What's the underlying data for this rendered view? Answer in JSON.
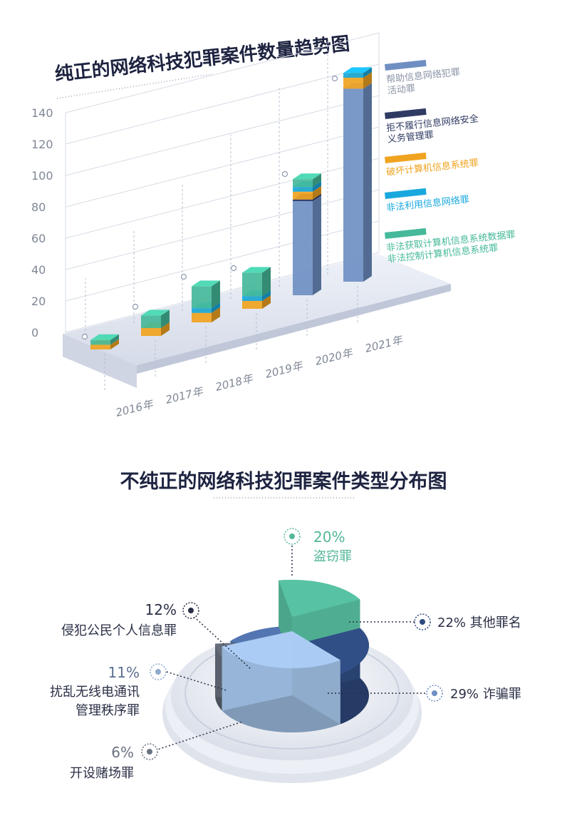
{
  "chart_data": [
    {
      "type": "bar",
      "title": "纯正的网络科技犯罪案件数量趋势图",
      "categories": [
        "2016年",
        "2017年",
        "2018年",
        "2019年",
        "2020年",
        "2021年"
      ],
      "yticks": [
        "0",
        "20",
        "40",
        "60",
        "80",
        "100",
        "120",
        "140"
      ],
      "ylim": [
        0,
        140
      ],
      "stacked": true,
      "series": [
        {
          "name": "帮助信息网络犯罪活动罪",
          "color": "#6f8fc3",
          "values": [
            0,
            0,
            0,
            0,
            60,
            123
          ]
        },
        {
          "name": "拒不履行信息网络安全义务管理罪",
          "color": "#2f3b63",
          "values": [
            0,
            0,
            0,
            0,
            1,
            0
          ]
        },
        {
          "name": "破坏计算机信息系统罪",
          "color": "#f0a320",
          "values": [
            3,
            5,
            6,
            5,
            5,
            7
          ]
        },
        {
          "name": "非法利用信息网络罪",
          "color": "#18a8de",
          "values": [
            0,
            0,
            3,
            3,
            3,
            3
          ]
        },
        {
          "name": "非法获取计算机信息系统数据罪 非法控制计算机信息系统罪",
          "color": "#45b99a",
          "values": [
            3,
            8,
            14,
            15,
            5,
            0
          ]
        }
      ],
      "legend": [
        {
          "line1": "帮助信息网络犯罪",
          "line2": "活动罪",
          "color": "#6f8fc3",
          "text_color": "#8a93a6"
        },
        {
          "line1": "拒不履行信息网络安全",
          "line2": "义务管理罪",
          "color": "#2f3b63",
          "text_color": "#2f3b63"
        },
        {
          "line1": "破坏计算机信息系统罪",
          "line2": "",
          "color": "#f0a320",
          "text_color": "#f0a320"
        },
        {
          "line1": "非法利用信息网络罪",
          "line2": "",
          "color": "#18a8de",
          "text_color": "#18a8de"
        },
        {
          "line1": "非法获取计算机信息系统数据罪",
          "line2": "非法控制计算机信息系统罪",
          "color": "#45b99a",
          "text_color": "#45b99a"
        }
      ],
      "legend_position": "right",
      "grid": true
    },
    {
      "type": "pie",
      "title": "不纯正的网络科技犯罪案件类型分布图",
      "slices": [
        {
          "pct": "20%",
          "name": "盗窃罪",
          "value": 20,
          "color": "#53b79a"
        },
        {
          "pct": "22%",
          "name": "其他罪名",
          "value": 22,
          "color": "#2e4a7e"
        },
        {
          "pct": "29%",
          "name": "诈骗罪",
          "value": 29,
          "color": "#9fbfe3"
        },
        {
          "pct": "6%",
          "name": "开设赌场罪",
          "value": 6,
          "color": "#5f6673"
        },
        {
          "pct": "11%",
          "name": "扰乱无线电通讯管理秩序罪",
          "value": 11,
          "color": "#c7d7ec"
        },
        {
          "pct": "12%",
          "name": "侵犯公民个人信息罪",
          "value": 12,
          "color": "#4e6fa8"
        }
      ],
      "labels": {
        "theft_pct": "20%",
        "theft_name": "盗窃罪",
        "other": "22% 其他罪名",
        "fraud": "29% 诈骗罪",
        "gamble_pct": "6%",
        "gamble_name": "开设赌场罪",
        "radio_pct": "11%",
        "radio_line1": "扰乱无线电通讯",
        "radio_line2": "管理秩序罪",
        "privacy_pct": "12%",
        "privacy_name": "侵犯公民个人信息罪"
      }
    }
  ]
}
